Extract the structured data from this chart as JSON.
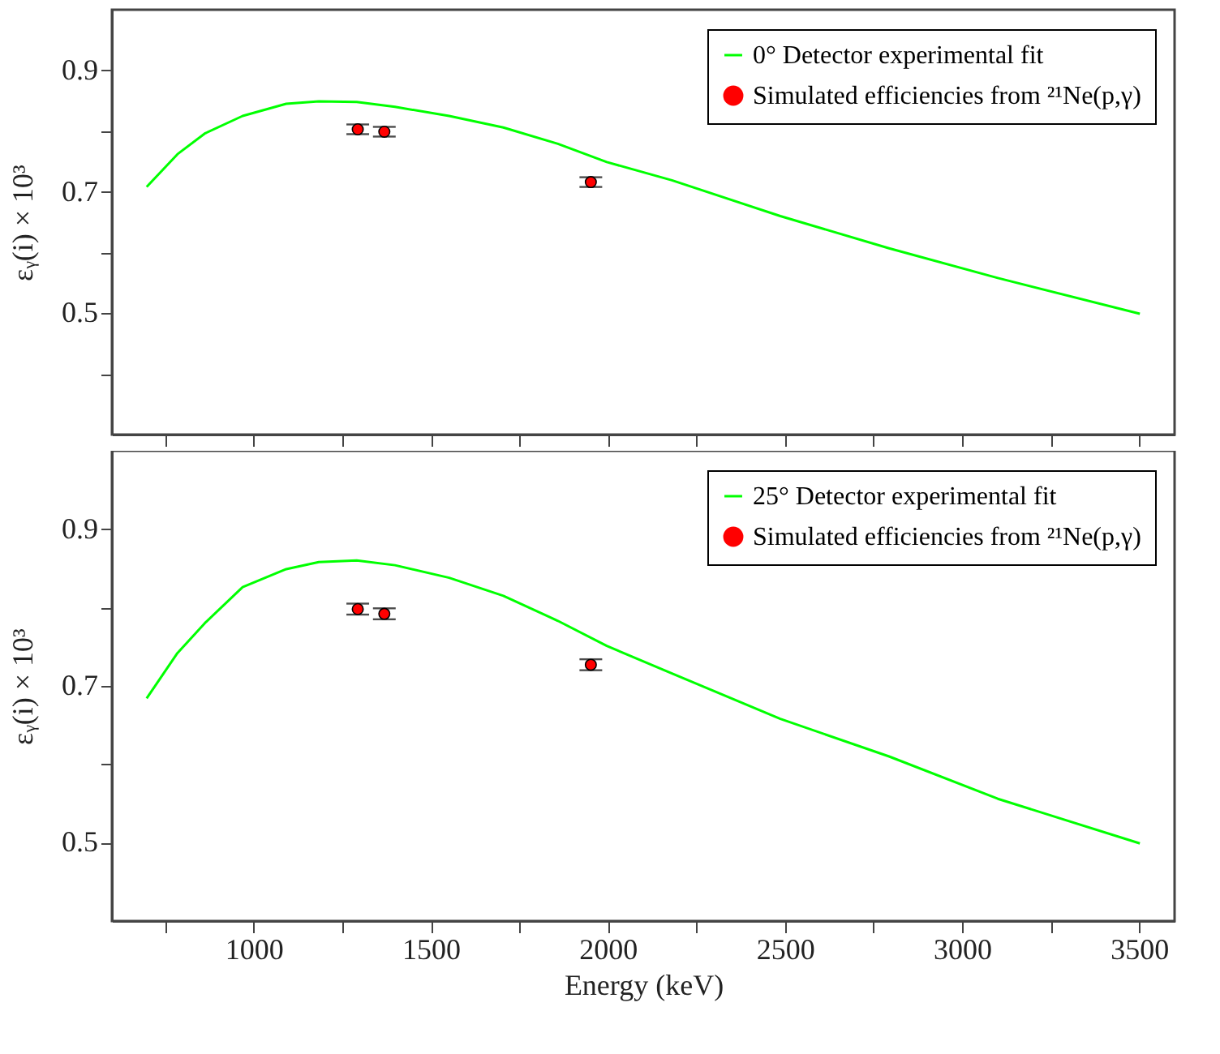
{
  "chart_data": [
    {
      "type": "line",
      "ylabel": "εᵧ(i) × 10³",
      "xlim": [
        600,
        3600
      ],
      "ylim": [
        0.3,
        1.0
      ],
      "xticks": [
        {
          "value": 750,
          "label": null
        },
        1000,
        {
          "value": 1250,
          "label": null
        },
        1500,
        {
          "value": 1750,
          "label": null
        },
        2000,
        {
          "value": 2250,
          "label": null
        },
        2500,
        {
          "value": 2750,
          "label": null
        },
        3000,
        {
          "value": 3250,
          "label": null
        },
        3500
      ],
      "yticks": [
        {
          "value": 0.4,
          "label": null
        },
        0.5,
        {
          "value": 0.6,
          "label": null
        },
        0.7,
        {
          "value": 0.8,
          "label": null
        },
        0.9
      ],
      "tick_labels": "y",
      "legend": "top right",
      "grid": false,
      "series": [
        {
          "name": "0° Detector experimental fit",
          "color": "#00ff00",
          "line_style": "solid",
          "x": [
            698,
            785,
            862,
            969,
            1092,
            1184,
            1291,
            1399,
            1552,
            1705,
            1859,
            1997,
            2181,
            2487,
            2794,
            3101,
            3502
          ],
          "values": [
            0.708,
            0.762,
            0.796,
            0.825,
            0.845,
            0.849,
            0.848,
            0.84,
            0.825,
            0.806,
            0.779,
            0.749,
            0.719,
            0.66,
            0.607,
            0.558,
            0.499
          ]
        },
        {
          "name": "Simulated efficiencies from ²¹Ne(p,γ)",
          "type": "scatter",
          "marker": "circle",
          "color": "#ff0000",
          "x": [
            1294,
            1369,
            1952
          ],
          "values": [
            0.803,
            0.799,
            0.716
          ],
          "errors": [
            0.008,
            0.008,
            0.008
          ]
        }
      ]
    },
    {
      "type": "line",
      "xlabel": "Energy (keV)",
      "ylabel": "εᵧ(i) × 10³",
      "xlim": [
        600,
        3600
      ],
      "ylim": [
        0.4,
        1.0
      ],
      "xticks": [
        {
          "value": 750,
          "label": null
        },
        1000,
        {
          "value": 1250,
          "label": null
        },
        1500,
        {
          "value": 1750,
          "label": null
        },
        2000,
        {
          "value": 2250,
          "label": null
        },
        2500,
        {
          "value": 2750,
          "label": null
        },
        3000,
        {
          "value": 3250,
          "label": null
        },
        3500
      ],
      "yticks": [
        0.5,
        {
          "value": 0.6,
          "label": null
        },
        0.7,
        {
          "value": 0.8,
          "label": null
        },
        0.9
      ],
      "legend": "top right",
      "grid": false,
      "series": [
        {
          "name": "25° Detector experimental fit",
          "color": "#00ff00",
          "line_style": "solid",
          "x": [
            698,
            785,
            862,
            969,
            1092,
            1184,
            1291,
            1399,
            1552,
            1705,
            1859,
            1997,
            2181,
            2487,
            2794,
            3101,
            3502
          ],
          "values": [
            0.684,
            0.742,
            0.78,
            0.826,
            0.849,
            0.858,
            0.86,
            0.854,
            0.838,
            0.815,
            0.783,
            0.751,
            0.716,
            0.658,
            0.61,
            0.556,
            0.499
          ]
        },
        {
          "name": "Simulated efficiencies from ²¹Ne(p,γ)",
          "type": "scatter",
          "marker": "circle",
          "color": "#ff0000",
          "x": [
            1294,
            1369,
            1952
          ],
          "values": [
            0.798,
            0.792,
            0.727
          ],
          "errors": [
            0.007,
            0.007,
            0.007
          ]
        }
      ]
    }
  ]
}
